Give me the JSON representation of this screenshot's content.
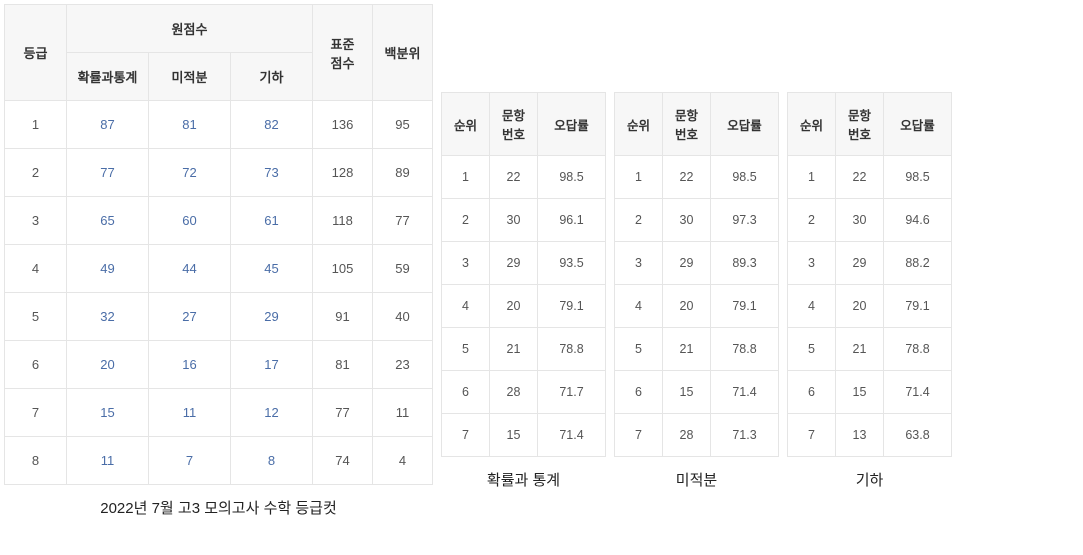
{
  "main": {
    "headers": {
      "grade": "등급",
      "raw_score": "원점수",
      "raw_sub": [
        "확률과통계",
        "미적분",
        "기하"
      ],
      "std_score": "표준\n점수",
      "percentile": "백분위"
    },
    "rows": [
      {
        "grade": "1",
        "raw": [
          "87",
          "81",
          "82"
        ],
        "std": "136",
        "pct": "95"
      },
      {
        "grade": "2",
        "raw": [
          "77",
          "72",
          "73"
        ],
        "std": "128",
        "pct": "89"
      },
      {
        "grade": "3",
        "raw": [
          "65",
          "60",
          "61"
        ],
        "std": "118",
        "pct": "77"
      },
      {
        "grade": "4",
        "raw": [
          "49",
          "44",
          "45"
        ],
        "std": "105",
        "pct": "59"
      },
      {
        "grade": "5",
        "raw": [
          "32",
          "27",
          "29"
        ],
        "std": "91",
        "pct": "40"
      },
      {
        "grade": "6",
        "raw": [
          "20",
          "16",
          "17"
        ],
        "std": "81",
        "pct": "23"
      },
      {
        "grade": "7",
        "raw": [
          "15",
          "11",
          "12"
        ],
        "std": "77",
        "pct": "11"
      },
      {
        "grade": "8",
        "raw": [
          "11",
          "7",
          "8"
        ],
        "std": "74",
        "pct": "4"
      }
    ],
    "caption": "2022년 7월 고3 모의고사 수학 등급컷"
  },
  "small_headers": {
    "rank": "순위",
    "qnum": "문항\n번호",
    "wrong": "오답률"
  },
  "tables": [
    {
      "caption": "확률과 통계",
      "rows": [
        {
          "rank": "1",
          "q": "22",
          "w": "98.5"
        },
        {
          "rank": "2",
          "q": "30",
          "w": "96.1"
        },
        {
          "rank": "3",
          "q": "29",
          "w": "93.5"
        },
        {
          "rank": "4",
          "q": "20",
          "w": "79.1"
        },
        {
          "rank": "5",
          "q": "21",
          "w": "78.8"
        },
        {
          "rank": "6",
          "q": "28",
          "w": "71.7"
        },
        {
          "rank": "7",
          "q": "15",
          "w": "71.4"
        }
      ]
    },
    {
      "caption": "미적분",
      "rows": [
        {
          "rank": "1",
          "q": "22",
          "w": "98.5"
        },
        {
          "rank": "2",
          "q": "30",
          "w": "97.3"
        },
        {
          "rank": "3",
          "q": "29",
          "w": "89.3"
        },
        {
          "rank": "4",
          "q": "20",
          "w": "79.1"
        },
        {
          "rank": "5",
          "q": "21",
          "w": "78.8"
        },
        {
          "rank": "6",
          "q": "15",
          "w": "71.4"
        },
        {
          "rank": "7",
          "q": "28",
          "w": "71.3"
        }
      ]
    },
    {
      "caption": "기하",
      "rows": [
        {
          "rank": "1",
          "q": "22",
          "w": "98.5"
        },
        {
          "rank": "2",
          "q": "30",
          "w": "94.6"
        },
        {
          "rank": "3",
          "q": "29",
          "w": "88.2"
        },
        {
          "rank": "4",
          "q": "20",
          "w": "79.1"
        },
        {
          "rank": "5",
          "q": "21",
          "w": "78.8"
        },
        {
          "rank": "6",
          "q": "15",
          "w": "71.4"
        },
        {
          "rank": "7",
          "q": "13",
          "w": "63.8"
        }
      ]
    }
  ]
}
